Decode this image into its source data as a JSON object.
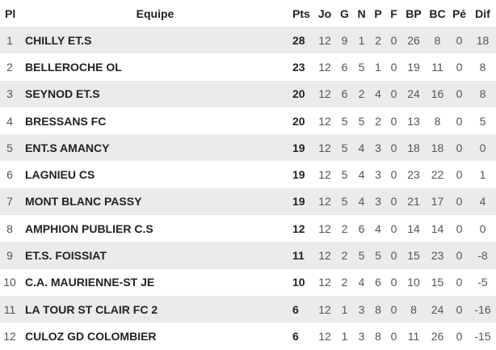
{
  "headers": {
    "pl": "Pl",
    "team": "Equipe",
    "pts": "Pts",
    "jo": "Jo",
    "g": "G",
    "n": "N",
    "p": "P",
    "f": "F",
    "bp": "BP",
    "bc": "BC",
    "pe": "Pé",
    "dif": "Dif"
  },
  "rows": [
    {
      "pl": "1",
      "team": "CHILLY ET.S",
      "pts": "28",
      "jo": "12",
      "g": "9",
      "n": "1",
      "p": "2",
      "f": "0",
      "bp": "26",
      "bc": "8",
      "pe": "0",
      "dif": "18"
    },
    {
      "pl": "2",
      "team": "BELLEROCHE OL",
      "pts": "23",
      "jo": "12",
      "g": "6",
      "n": "5",
      "p": "1",
      "f": "0",
      "bp": "19",
      "bc": "11",
      "pe": "0",
      "dif": "8"
    },
    {
      "pl": "3",
      "team": "SEYNOD ET.S",
      "pts": "20",
      "jo": "12",
      "g": "6",
      "n": "2",
      "p": "4",
      "f": "0",
      "bp": "24",
      "bc": "16",
      "pe": "0",
      "dif": "8"
    },
    {
      "pl": "4",
      "team": "BRESSANS FC",
      "pts": "20",
      "jo": "12",
      "g": "5",
      "n": "5",
      "p": "2",
      "f": "0",
      "bp": "13",
      "bc": "8",
      "pe": "0",
      "dif": "5"
    },
    {
      "pl": "5",
      "team": "ENT.S AMANCY",
      "pts": "19",
      "jo": "12",
      "g": "5",
      "n": "4",
      "p": "3",
      "f": "0",
      "bp": "18",
      "bc": "18",
      "pe": "0",
      "dif": "0"
    },
    {
      "pl": "6",
      "team": "LAGNIEU CS",
      "pts": "19",
      "jo": "12",
      "g": "5",
      "n": "4",
      "p": "3",
      "f": "0",
      "bp": "23",
      "bc": "22",
      "pe": "0",
      "dif": "1"
    },
    {
      "pl": "7",
      "team": "MONT BLANC PASSY",
      "pts": "19",
      "jo": "12",
      "g": "5",
      "n": "4",
      "p": "3",
      "f": "0",
      "bp": "21",
      "bc": "17",
      "pe": "0",
      "dif": "4"
    },
    {
      "pl": "8",
      "team": "AMPHION PUBLIER C.S",
      "pts": "12",
      "jo": "12",
      "g": "2",
      "n": "6",
      "p": "4",
      "f": "0",
      "bp": "14",
      "bc": "14",
      "pe": "0",
      "dif": "0"
    },
    {
      "pl": "9",
      "team": "ET.S. FOISSIAT",
      "pts": "11",
      "jo": "12",
      "g": "2",
      "n": "5",
      "p": "5",
      "f": "0",
      "bp": "15",
      "bc": "23",
      "pe": "0",
      "dif": "-8"
    },
    {
      "pl": "10",
      "team": "C.A. MAURIENNE-ST JE",
      "pts": "10",
      "jo": "12",
      "g": "2",
      "n": "4",
      "p": "6",
      "f": "0",
      "bp": "10",
      "bc": "15",
      "pe": "0",
      "dif": "-5"
    },
    {
      "pl": "11",
      "team": "LA TOUR ST CLAIR FC 2",
      "pts": "6",
      "jo": "12",
      "g": "1",
      "n": "3",
      "p": "8",
      "f": "0",
      "bp": "8",
      "bc": "24",
      "pe": "0",
      "dif": "-16"
    },
    {
      "pl": "12",
      "team": "CULOZ GD COLOMBIER",
      "pts": "6",
      "jo": "12",
      "g": "1",
      "n": "3",
      "p": "8",
      "f": "0",
      "bp": "11",
      "bc": "26",
      "pe": "0",
      "dif": "-15"
    }
  ]
}
